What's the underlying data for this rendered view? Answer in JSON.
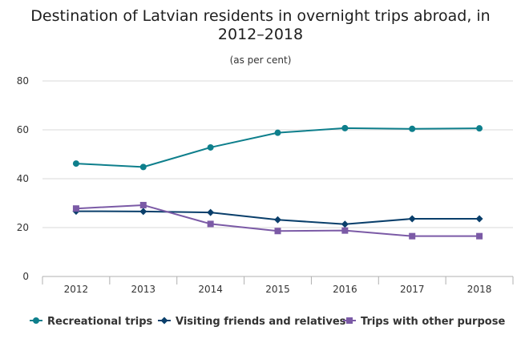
{
  "chart_data": {
    "type": "line",
    "title_line1": "Destination of Latvian residents in overnight trips abroad, in",
    "title_line2": "2012–2018",
    "subtitle": "(as per cent)",
    "categories": [
      "2012",
      "2013",
      "2014",
      "2015",
      "2016",
      "2017",
      "2018"
    ],
    "ylim": [
      0,
      80
    ],
    "yticks": [
      0,
      20,
      40,
      60,
      80
    ],
    "grid": true,
    "legend_position": "bottom",
    "series": [
      {
        "name": "Recreational trips",
        "color": "#0e7f8c",
        "marker": "circle",
        "values": [
          46.2,
          44.8,
          52.8,
          58.8,
          60.7,
          60.4,
          60.6
        ]
      },
      {
        "name": "Visiting friends and relatives",
        "color": "#0a3f6b",
        "marker": "diamond",
        "values": [
          26.7,
          26.6,
          26.2,
          23.2,
          21.4,
          23.6,
          23.6
        ]
      },
      {
        "name": "Trips with other purpose",
        "color": "#7b5aa6",
        "marker": "square",
        "values": [
          27.8,
          29.2,
          21.5,
          18.6,
          18.8,
          16.5,
          16.5
        ]
      }
    ]
  }
}
